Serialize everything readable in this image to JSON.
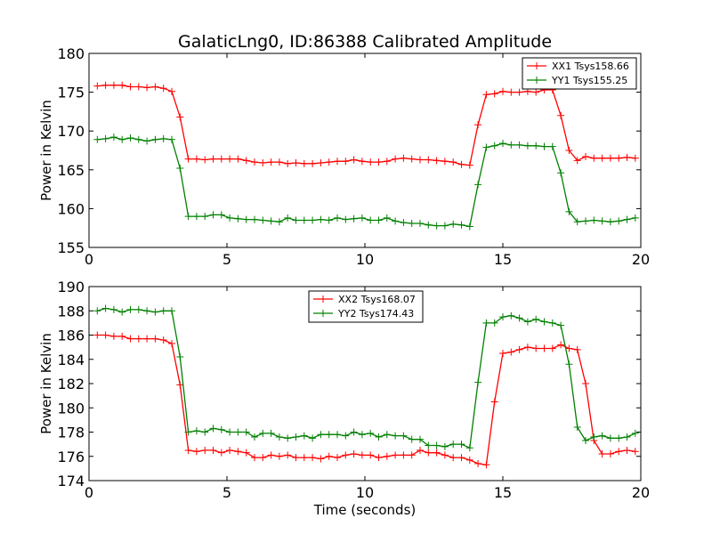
{
  "figure": {
    "title": "GalaticLng0, ID:86388 Calibrated Amplitude"
  },
  "chart_data": [
    {
      "type": "line",
      "ylabel": "Power in Kelvin",
      "xlabel": "",
      "xlim": [
        0,
        20
      ],
      "ylim": [
        155,
        180
      ],
      "xticks": [
        0,
        5,
        10,
        15,
        20
      ],
      "yticks": [
        155,
        160,
        165,
        170,
        175,
        180
      ],
      "grid": false,
      "legend_position": "top-right",
      "x": [
        0.3,
        0.6,
        0.9,
        1.2,
        1.5,
        1.8,
        2.1,
        2.4,
        2.7,
        3.0,
        3.3,
        3.6,
        3.9,
        4.2,
        4.5,
        4.8,
        5.1,
        5.4,
        5.7,
        6.0,
        6.3,
        6.6,
        6.9,
        7.2,
        7.5,
        7.8,
        8.1,
        8.4,
        8.7,
        9.0,
        9.3,
        9.6,
        9.9,
        10.2,
        10.5,
        10.8,
        11.1,
        11.4,
        11.7,
        12.0,
        12.3,
        12.6,
        12.9,
        13.2,
        13.5,
        13.8,
        14.1,
        14.4,
        14.7,
        15.0,
        15.3,
        15.6,
        15.9,
        16.2,
        16.5,
        16.8,
        17.1,
        17.4,
        17.7,
        18.0,
        18.3,
        18.6,
        18.9,
        19.2,
        19.5,
        19.8
      ],
      "series": [
        {
          "name": "XX1 Tsys158.66",
          "color": "#ff0000",
          "values": [
            175.8,
            175.9,
            175.9,
            175.9,
            175.7,
            175.7,
            175.6,
            175.7,
            175.5,
            175.1,
            171.8,
            166.4,
            166.4,
            166.3,
            166.4,
            166.4,
            166.4,
            166.4,
            166.2,
            166.0,
            165.9,
            166.0,
            166.0,
            165.8,
            165.9,
            165.8,
            165.8,
            165.9,
            166.0,
            166.1,
            166.1,
            166.3,
            166.1,
            166.0,
            166.0,
            166.1,
            166.4,
            166.5,
            166.4,
            166.3,
            166.3,
            166.2,
            166.1,
            166.0,
            165.7,
            165.6,
            170.8,
            174.7,
            174.8,
            175.1,
            175.0,
            175.0,
            175.1,
            175.0,
            175.3,
            175.3,
            172.0,
            167.5,
            166.2,
            166.7,
            166.5,
            166.5,
            166.5,
            166.5,
            166.6,
            166.5
          ]
        },
        {
          "name": "YY1 Tsys155.25",
          "color": "#008000",
          "values": [
            168.9,
            169.0,
            169.2,
            168.9,
            169.1,
            168.9,
            168.7,
            168.9,
            169.0,
            168.9,
            165.2,
            159.0,
            159.0,
            159.0,
            159.2,
            159.2,
            158.8,
            158.7,
            158.6,
            158.6,
            158.5,
            158.4,
            158.3,
            158.8,
            158.5,
            158.5,
            158.5,
            158.6,
            158.5,
            158.8,
            158.6,
            158.7,
            158.8,
            158.5,
            158.5,
            158.8,
            158.4,
            158.2,
            158.1,
            158.1,
            157.9,
            157.8,
            157.8,
            158.0,
            157.9,
            157.7,
            163.1,
            167.9,
            168.1,
            168.4,
            168.2,
            168.2,
            168.1,
            168.1,
            168.0,
            168.0,
            164.6,
            159.6,
            158.3,
            158.4,
            158.5,
            158.4,
            158.3,
            158.4,
            158.6,
            158.8
          ]
        }
      ]
    },
    {
      "type": "line",
      "ylabel": "Power in Kelvin",
      "xlabel": "Time (seconds)",
      "xlim": [
        0,
        20
      ],
      "ylim": [
        174,
        190
      ],
      "xticks": [
        0,
        5,
        10,
        15,
        20
      ],
      "yticks": [
        174,
        176,
        178,
        180,
        182,
        184,
        186,
        188,
        190
      ],
      "grid": false,
      "legend_position": "top-center",
      "x": [
        0.3,
        0.6,
        0.9,
        1.2,
        1.5,
        1.8,
        2.1,
        2.4,
        2.7,
        3.0,
        3.3,
        3.6,
        3.9,
        4.2,
        4.5,
        4.8,
        5.1,
        5.4,
        5.7,
        6.0,
        6.3,
        6.6,
        6.9,
        7.2,
        7.5,
        7.8,
        8.1,
        8.4,
        8.7,
        9.0,
        9.3,
        9.6,
        9.9,
        10.2,
        10.5,
        10.8,
        11.1,
        11.4,
        11.7,
        12.0,
        12.3,
        12.6,
        12.9,
        13.2,
        13.5,
        13.8,
        14.1,
        14.4,
        14.7,
        15.0,
        15.3,
        15.6,
        15.9,
        16.2,
        16.5,
        16.8,
        17.1,
        17.4,
        17.7,
        18.0,
        18.3,
        18.6,
        18.9,
        19.2,
        19.5,
        19.8
      ],
      "series": [
        {
          "name": "XX2 Tsys168.07",
          "color": "#ff0000",
          "values": [
            186.0,
            186.0,
            185.9,
            185.9,
            185.7,
            185.7,
            185.7,
            185.7,
            185.6,
            185.3,
            181.9,
            176.5,
            176.4,
            176.5,
            176.5,
            176.3,
            176.5,
            176.4,
            176.3,
            175.9,
            175.9,
            176.1,
            176.0,
            176.1,
            175.9,
            175.9,
            175.9,
            175.8,
            176.0,
            175.9,
            176.1,
            176.2,
            176.1,
            176.1,
            175.9,
            176.0,
            176.1,
            176.1,
            176.1,
            176.5,
            176.3,
            176.3,
            176.1,
            175.9,
            175.9,
            175.7,
            175.4,
            175.3,
            180.5,
            184.5,
            184.6,
            184.8,
            185.0,
            184.9,
            184.9,
            184.9,
            185.2,
            184.9,
            184.8,
            182.0,
            177.3,
            176.2,
            176.2,
            176.4,
            176.5,
            176.4
          ]
        },
        {
          "name": "YY2 Tsys174.43",
          "color": "#008000",
          "values": [
            188.0,
            188.2,
            188.1,
            187.9,
            188.1,
            188.1,
            188.0,
            187.9,
            188.0,
            188.0,
            184.2,
            178.0,
            178.1,
            178.0,
            178.3,
            178.2,
            178.0,
            178.0,
            178.0,
            177.6,
            177.9,
            177.9,
            177.6,
            177.5,
            177.6,
            177.7,
            177.5,
            177.8,
            177.8,
            177.8,
            177.7,
            178.0,
            177.8,
            177.9,
            177.6,
            177.8,
            177.7,
            177.7,
            177.4,
            177.4,
            176.9,
            176.9,
            176.8,
            177.0,
            177.0,
            176.7,
            182.1,
            187.0,
            187.0,
            187.5,
            187.6,
            187.4,
            187.1,
            187.3,
            187.1,
            187.0,
            186.8,
            183.6,
            178.4,
            177.3,
            177.6,
            177.7,
            177.5,
            177.5,
            177.6,
            177.9
          ]
        }
      ]
    }
  ]
}
